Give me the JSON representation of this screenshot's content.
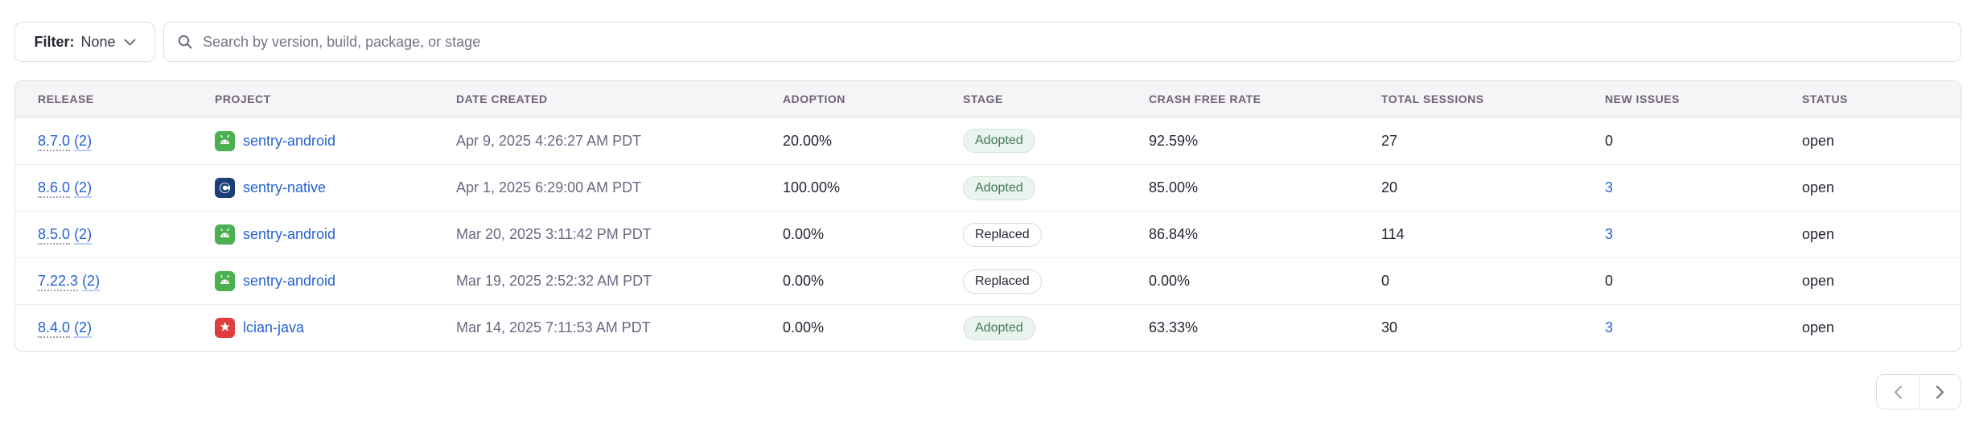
{
  "topbar": {
    "filter_label": "Filter:",
    "filter_value": "None",
    "search_placeholder": "Search by version, build, package, or stage"
  },
  "table": {
    "columns": [
      "RELEASE",
      "PROJECT",
      "DATE CREATED",
      "ADOPTION",
      "STAGE",
      "CRASH FREE RATE",
      "TOTAL SESSIONS",
      "NEW ISSUES",
      "STATUS"
    ],
    "rows": [
      {
        "release_version": "8.7.0",
        "release_count": "(2)",
        "project": "sentry-android",
        "platform": "android",
        "date_created": "Apr 9, 2025 4:26:27 AM PDT",
        "adoption": "20.00%",
        "stage": "Adopted",
        "crash_free_rate": "92.59%",
        "total_sessions": "27",
        "new_issues": "0",
        "new_issues_is_link": false,
        "status": "open"
      },
      {
        "release_version": "8.6.0",
        "release_count": "(2)",
        "project": "sentry-native",
        "platform": "c",
        "date_created": "Apr 1, 2025 6:29:00 AM PDT",
        "adoption": "100.00%",
        "stage": "Adopted",
        "crash_free_rate": "85.00%",
        "total_sessions": "20",
        "new_issues": "3",
        "new_issues_is_link": true,
        "status": "open"
      },
      {
        "release_version": "8.5.0",
        "release_count": "(2)",
        "project": "sentry-android",
        "platform": "android",
        "date_created": "Mar 20, 2025 3:11:42 PM PDT",
        "adoption": "0.00%",
        "stage": "Replaced",
        "crash_free_rate": "86.84%",
        "total_sessions": "114",
        "new_issues": "3",
        "new_issues_is_link": true,
        "status": "open"
      },
      {
        "release_version": "7.22.3",
        "release_count": "(2)",
        "project": "sentry-android",
        "platform": "android",
        "date_created": "Mar 19, 2025 2:52:32 AM PDT",
        "adoption": "0.00%",
        "stage": "Replaced",
        "crash_free_rate": "0.00%",
        "total_sessions": "0",
        "new_issues": "0",
        "new_issues_is_link": false,
        "status": "open"
      },
      {
        "release_version": "8.4.0",
        "release_count": "(2)",
        "project": "lcian-java",
        "platform": "java",
        "date_created": "Mar 14, 2025 7:11:53 AM PDT",
        "adoption": "0.00%",
        "stage": "Adopted",
        "crash_free_rate": "63.33%",
        "total_sessions": "30",
        "new_issues": "3",
        "new_issues_is_link": true,
        "status": "open"
      }
    ]
  },
  "colors": {
    "link_blue": "#2562d4",
    "header_bg": "#f5f4f7",
    "border": "#e0dce5",
    "adopted_text": "#41785a",
    "adopted_bg": "#eaf4ee",
    "android_green": "#4caf50",
    "c_navy": "#1d3f77",
    "java_red": "#e03e3e"
  }
}
